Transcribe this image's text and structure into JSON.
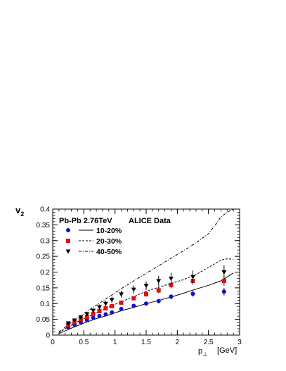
{
  "chart_data": {
    "type": "scatter",
    "title": "",
    "header_left": "Pb-Pb  2.76TeV",
    "header_right": "ALICE Data",
    "ylabel": "v",
    "ylabel_sub": "2",
    "xlabel": "p",
    "xlabel_sub": "⊥",
    "xunit": "[GeV]",
    "xlim": [
      0,
      3
    ],
    "ylim": [
      0,
      0.4
    ],
    "xticks": [
      0,
      0.5,
      1,
      1.5,
      2,
      2.5,
      3
    ],
    "xtick_labels": [
      "0",
      "0.5",
      "1",
      "1.5",
      "2",
      "2.5",
      "3"
    ],
    "yticks": [
      0,
      0.05,
      0.1,
      0.15,
      0.2,
      0.25,
      0.3,
      0.35,
      0.4
    ],
    "ytick_labels": [
      "0",
      "0.05",
      "0.1",
      "0.15",
      "0.2",
      "0.25",
      "0.3",
      "0.35",
      "0.4"
    ],
    "legend_position": "top-left",
    "series": [
      {
        "name": "10-20%",
        "marker": "circle",
        "color": "#1010d0",
        "line_style": "solid",
        "x": [
          0.25,
          0.35,
          0.45,
          0.55,
          0.65,
          0.75,
          0.85,
          0.95,
          1.1,
          1.3,
          1.5,
          1.7,
          1.9,
          2.25,
          2.75
        ],
        "y": [
          0.025,
          0.033,
          0.041,
          0.048,
          0.055,
          0.061,
          0.066,
          0.072,
          0.083,
          0.093,
          0.1,
          0.108,
          0.122,
          0.131,
          0.138
        ],
        "err": [
          0.005,
          0.004,
          0.004,
          0.004,
          0.004,
          0.004,
          0.004,
          0.004,
          0.005,
          0.005,
          0.006,
          0.007,
          0.008,
          0.009,
          0.012
        ],
        "model_x": [
          0.1,
          0.3,
          0.5,
          0.7,
          0.9,
          1.1,
          1.3,
          1.5,
          1.7,
          1.9,
          2.1,
          2.3,
          2.5,
          2.7,
          2.9
        ],
        "model_y": [
          0.005,
          0.022,
          0.038,
          0.052,
          0.064,
          0.077,
          0.088,
          0.1,
          0.11,
          0.121,
          0.133,
          0.146,
          0.158,
          0.172,
          0.197
        ]
      },
      {
        "name": "20-30%",
        "marker": "square",
        "color": "#e01010",
        "line_style": "dashed",
        "x": [
          0.25,
          0.35,
          0.45,
          0.55,
          0.65,
          0.75,
          0.85,
          0.95,
          1.1,
          1.3,
          1.5,
          1.7,
          1.9,
          2.25,
          2.75
        ],
        "y": [
          0.032,
          0.041,
          0.051,
          0.058,
          0.067,
          0.076,
          0.085,
          0.092,
          0.103,
          0.117,
          0.13,
          0.142,
          0.159,
          0.172,
          0.172
        ],
        "err": [
          0.005,
          0.005,
          0.004,
          0.004,
          0.004,
          0.004,
          0.005,
          0.005,
          0.006,
          0.007,
          0.008,
          0.009,
          0.01,
          0.012,
          0.015
        ],
        "model_x": [
          0.1,
          0.3,
          0.5,
          0.7,
          0.9,
          1.1,
          1.3,
          1.5,
          1.7,
          1.9,
          2.1,
          2.3,
          2.5,
          2.7,
          2.8,
          2.9
        ],
        "model_y": [
          0.008,
          0.032,
          0.052,
          0.07,
          0.089,
          0.106,
          0.122,
          0.139,
          0.152,
          0.164,
          0.176,
          0.192,
          0.215,
          0.238,
          0.242,
          0.241
        ]
      },
      {
        "name": "40-50%",
        "marker": "triangle-down",
        "color": "#000000",
        "line_style": "dashdot",
        "x": [
          0.25,
          0.35,
          0.45,
          0.55,
          0.65,
          0.75,
          0.85,
          0.95,
          1.1,
          1.3,
          1.5,
          1.7,
          1.9,
          2.25,
          2.75
        ],
        "y": [
          0.038,
          0.047,
          0.057,
          0.067,
          0.078,
          0.089,
          0.1,
          0.112,
          0.13,
          0.145,
          0.157,
          0.172,
          0.18,
          0.185,
          0.2
        ],
        "err": [
          0.006,
          0.006,
          0.006,
          0.006,
          0.007,
          0.008,
          0.009,
          0.01,
          0.011,
          0.013,
          0.014,
          0.016,
          0.018,
          0.02,
          0.022
        ],
        "model_x": [
          0.1,
          0.3,
          0.5,
          0.7,
          0.9,
          1.1,
          1.3,
          1.5,
          1.7,
          1.9,
          2.1,
          2.3,
          2.5,
          2.6,
          2.7,
          2.8,
          2.9
        ],
        "model_y": [
          0.01,
          0.04,
          0.068,
          0.095,
          0.121,
          0.147,
          0.172,
          0.196,
          0.22,
          0.244,
          0.268,
          0.293,
          0.322,
          0.347,
          0.375,
          0.39,
          0.4
        ]
      }
    ]
  }
}
